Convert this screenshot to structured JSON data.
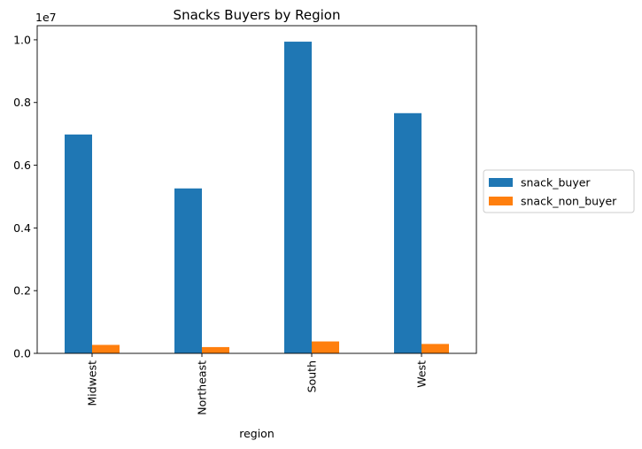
{
  "chart_data": {
    "type": "bar",
    "title": "Snacks Buyers by Region",
    "xlabel": "region",
    "ylabel": "",
    "y_offset_label": "1e7",
    "categories": [
      "Midwest",
      "Northeast",
      "South",
      "West"
    ],
    "series": [
      {
        "name": "snack_buyer",
        "color": "#1f77b4",
        "values": [
          6980000,
          5260000,
          9940000,
          7660000
        ]
      },
      {
        "name": "snack_non_buyer",
        "color": "#ff7f0e",
        "values": [
          270000,
          200000,
          380000,
          300000
        ]
      }
    ],
    "ylim": [
      0,
      10450000
    ],
    "yticks": [
      {
        "value": 0,
        "label": "0.0"
      },
      {
        "value": 2000000,
        "label": "0.2"
      },
      {
        "value": 4000000,
        "label": "0.4"
      },
      {
        "value": 6000000,
        "label": "0.6"
      },
      {
        "value": 8000000,
        "label": "0.8"
      },
      {
        "value": 10000000,
        "label": "1.0"
      }
    ],
    "grid": false,
    "legend_position": "right, outside plot"
  }
}
